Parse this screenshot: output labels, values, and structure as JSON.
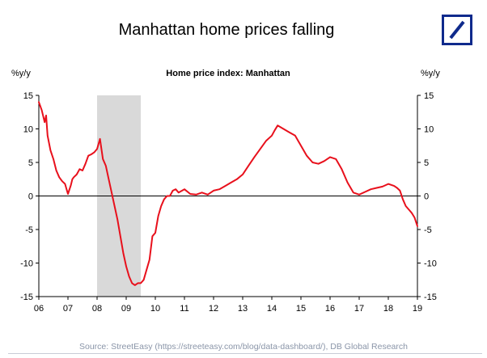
{
  "header": {
    "title": "Manhattan home prices falling",
    "logo_icon": "deutsche-bank-slash-logo"
  },
  "footer": {
    "source": "Source: StreetEasy (https://streeteasy.com/blog/data-dashboard/), DB Global Research"
  },
  "colors": {
    "line": "#e8101c",
    "recession": "#d9d9d9",
    "logo": "#0f2a8c",
    "source_text": "#8a95a8"
  },
  "chart_data": {
    "type": "line",
    "title": "Home price index: Manhattan",
    "ylabel_left": "%y/y",
    "ylabel_right": "%y/y",
    "ylim": [
      -15,
      15
    ],
    "y_ticks": [
      15,
      10,
      5,
      0,
      -5,
      -10,
      -15
    ],
    "xlim": [
      2006,
      2019
    ],
    "x_ticks": [
      2006,
      2007,
      2008,
      2009,
      2010,
      2011,
      2012,
      2013,
      2014,
      2015,
      2016,
      2017,
      2018,
      2019
    ],
    "x_tick_labels": [
      "06",
      "07",
      "08",
      "09",
      "10",
      "11",
      "12",
      "13",
      "14",
      "15",
      "16",
      "17",
      "18",
      "19"
    ],
    "grid": false,
    "zero_line": true,
    "shaded_region": [
      2008.0,
      2009.5
    ],
    "series": [
      {
        "x": [
          2006.0,
          2006.1,
          2006.2,
          2006.25,
          2006.3,
          2006.4,
          2006.5,
          2006.6,
          2006.7,
          2006.8,
          2006.9,
          2007.0,
          2007.1,
          2007.15,
          2007.2,
          2007.3,
          2007.4,
          2007.5,
          2007.6,
          2007.7,
          2007.8,
          2007.9,
          2008.0,
          2008.1,
          2008.15,
          2008.2,
          2008.3,
          2008.4,
          2008.5,
          2008.6,
          2008.7,
          2008.8,
          2008.9,
          2009.0,
          2009.1,
          2009.2,
          2009.3,
          2009.4,
          2009.5,
          2009.6,
          2009.7,
          2009.8,
          2009.9,
          2010.0,
          2010.1,
          2010.2,
          2010.3,
          2010.4,
          2010.5,
          2010.6,
          2010.7,
          2010.8,
          2011.0,
          2011.2,
          2011.4,
          2011.6,
          2011.8,
          2012.0,
          2012.2,
          2012.4,
          2012.6,
          2012.8,
          2013.0,
          2013.2,
          2013.4,
          2013.6,
          2013.8,
          2014.0,
          2014.1,
          2014.2,
          2014.4,
          2014.6,
          2014.8,
          2015.0,
          2015.2,
          2015.4,
          2015.6,
          2015.8,
          2016.0,
          2016.2,
          2016.4,
          2016.6,
          2016.8,
          2017.0,
          2017.2,
          2017.4,
          2017.6,
          2017.8,
          2018.0,
          2018.2,
          2018.3,
          2018.4,
          2018.5,
          2018.6,
          2018.7,
          2018.8,
          2018.9,
          2019.0
        ],
        "values": [
          14.0,
          12.8,
          11.0,
          12.0,
          9.0,
          6.8,
          5.5,
          3.8,
          2.8,
          2.2,
          1.8,
          0.3,
          1.6,
          2.5,
          2.8,
          3.2,
          4.0,
          3.8,
          4.8,
          6.0,
          6.2,
          6.5,
          7.0,
          8.5,
          7.0,
          5.5,
          4.5,
          2.5,
          0.5,
          -1.5,
          -3.5,
          -6.0,
          -8.5,
          -10.5,
          -12.0,
          -13.0,
          -13.3,
          -13.0,
          -13.0,
          -12.5,
          -11.0,
          -9.5,
          -6.0,
          -5.5,
          -3.0,
          -1.5,
          -0.5,
          0.0,
          0.0,
          0.8,
          1.0,
          0.5,
          1.0,
          0.3,
          0.2,
          0.5,
          0.2,
          0.8,
          1.0,
          1.5,
          2.0,
          2.5,
          3.2,
          4.5,
          5.8,
          7.0,
          8.2,
          9.0,
          9.8,
          10.5,
          10.0,
          9.5,
          9.0,
          7.5,
          6.0,
          5.0,
          4.8,
          5.2,
          5.8,
          5.5,
          4.0,
          2.0,
          0.5,
          0.2,
          0.6,
          1.0,
          1.2,
          1.4,
          1.8,
          1.5,
          1.2,
          0.8,
          -0.5,
          -1.5,
          -2.0,
          -2.5,
          -3.2,
          -4.5
        ]
      }
    ]
  }
}
